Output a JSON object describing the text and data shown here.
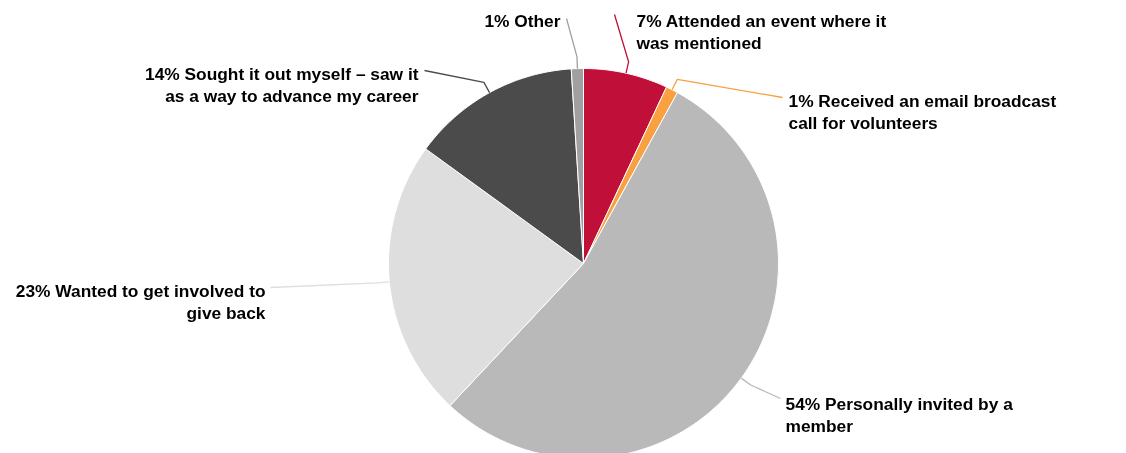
{
  "chart_data": {
    "type": "pie",
    "categories": [
      "Attended an event where it was mentioned",
      "Received an email broadcast call for volunteers",
      "Personally invited by a member",
      "Wanted to get involved to give back",
      "Sought it out myself – saw it as a way to advance my career",
      "Other"
    ],
    "values": [
      7,
      1,
      54,
      23,
      14,
      1
    ],
    "colors": [
      "#c0103a",
      "#f9a040",
      "#b9b9b9",
      "#dedede",
      "#4b4b4b",
      "#a0a0a0"
    ],
    "value_labels": [
      "7%",
      "1%",
      "54%",
      "23%",
      "14%",
      "1%"
    ]
  }
}
